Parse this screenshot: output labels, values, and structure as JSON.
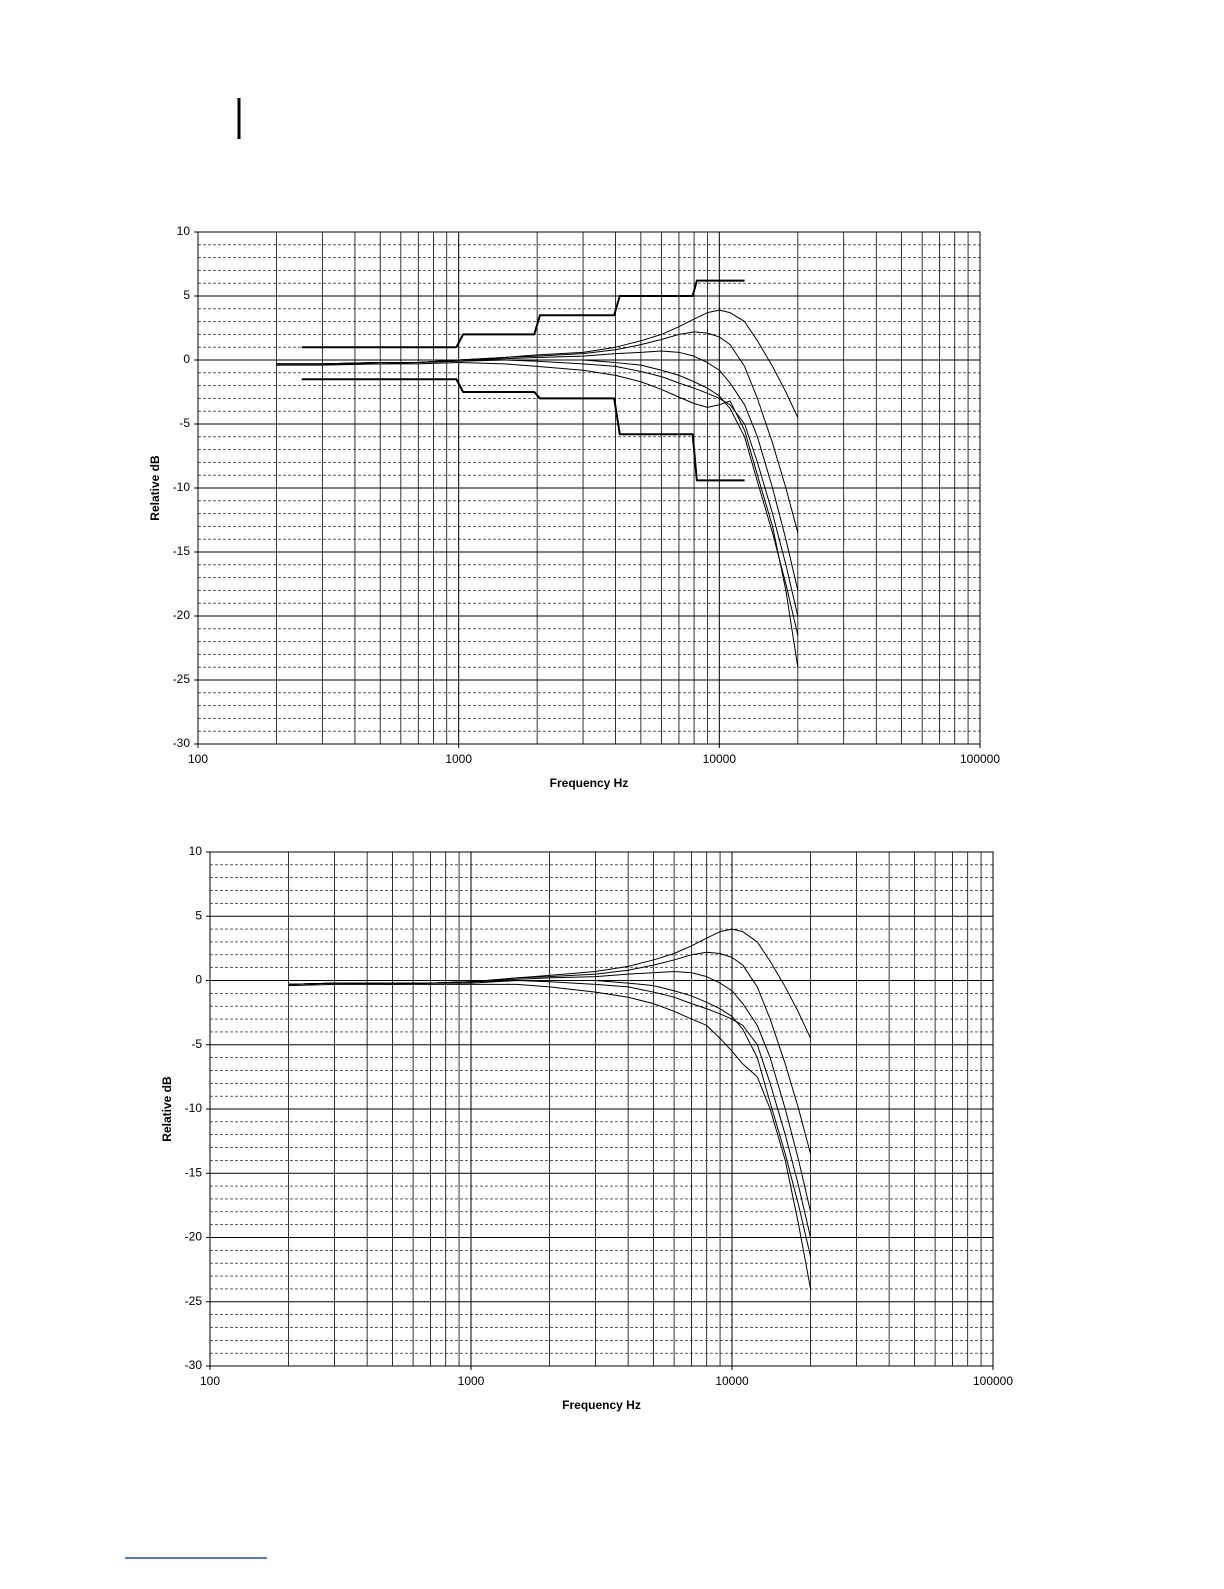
{
  "chart_data": [
    {
      "type": "line",
      "xlabel": "Frequency Hz",
      "ylabel": "Relative dB",
      "log_x": true,
      "grid": true,
      "xlim": [
        100,
        100000
      ],
      "xticks": [
        100,
        1000,
        10000,
        100000
      ],
      "ylim": [
        -30,
        10
      ],
      "yticks": [
        -30,
        -25,
        -20,
        -15,
        -10,
        -5,
        0,
        5,
        10
      ],
      "x": [
        200,
        300,
        500,
        700,
        1000,
        1500,
        2000,
        3000,
        4000,
        5000,
        6000,
        7000,
        8000,
        9000,
        10000,
        11000,
        12500,
        14000,
        16000,
        18000,
        20000
      ],
      "series": [
        {
          "color": "#000000",
          "width": 1,
          "values": [
            -0.3,
            -0.3,
            -0.2,
            -0.2,
            0,
            0.2,
            0.4,
            0.6,
            1,
            1.5,
            2,
            2.6,
            3.2,
            3.7,
            3.9,
            3.7,
            3,
            1.5,
            -0.5,
            -2.5,
            -4.5
          ]
        },
        {
          "color": "#000000",
          "width": 1,
          "values": [
            -0.3,
            -0.3,
            -0.2,
            -0.2,
            0,
            0.2,
            0.3,
            0.5,
            0.8,
            1.2,
            1.6,
            2,
            2.2,
            2.1,
            1.8,
            1.2,
            -0.5,
            -3,
            -6.5,
            -10,
            -13.5
          ]
        },
        {
          "color": "#000000",
          "width": 1,
          "values": [
            -0.3,
            -0.3,
            -0.2,
            -0.2,
            0,
            0.1,
            0.2,
            0.3,
            0.5,
            0.6,
            0.7,
            0.6,
            0.3,
            -0.2,
            -0.8,
            -1.8,
            -3.5,
            -6,
            -10,
            -14,
            -18
          ]
        },
        {
          "color": "#000000",
          "width": 1,
          "values": [
            -0.3,
            -0.3,
            -0.2,
            -0.2,
            0,
            0,
            -0.1,
            -0.3,
            -0.5,
            -0.9,
            -1.3,
            -1.8,
            -2.2,
            -2.6,
            -3,
            -3.5,
            -5,
            -8,
            -12,
            -16,
            -20
          ]
        },
        {
          "color": "#000000",
          "width": 1,
          "values": [
            -0.4,
            -0.4,
            -0.3,
            -0.3,
            -0.2,
            -0.3,
            -0.5,
            -0.8,
            -1.2,
            -1.7,
            -2.3,
            -2.9,
            -3.4,
            -3.7,
            -3.5,
            -3.2,
            -5.5,
            -9,
            -13,
            -18,
            -24
          ]
        },
        {
          "color": "#000000",
          "width": 1,
          "values": [
            -0.3,
            -0.3,
            -0.3,
            -0.2,
            -0.1,
            0,
            0,
            0,
            -0.2,
            -0.4,
            -0.8,
            -1.2,
            -1.7,
            -2.2,
            -2.8,
            -3.8,
            -6,
            -9.5,
            -13.5,
            -17.5,
            -21.5
          ]
        },
        {
          "color": "#000000",
          "width": 2,
          "x": [
            250,
            980,
            1040,
            1950,
            2050,
            3950,
            4150,
            7900,
            8200,
            12500
          ],
          "values": [
            1,
            1,
            2,
            2,
            3.5,
            3.5,
            5,
            5,
            6.2,
            6.2
          ]
        },
        {
          "color": "#000000",
          "width": 2,
          "x": [
            250,
            980,
            1040,
            1950,
            2050,
            3950,
            4150,
            7900,
            8200,
            12500
          ],
          "values": [
            -1.5,
            -1.5,
            -2.5,
            -2.5,
            -3,
            -3,
            -5.8,
            -5.8,
            -9.4,
            -9.4
          ]
        }
      ]
    },
    {
      "type": "line",
      "xlabel": "Frequency Hz",
      "ylabel": "Relative dB",
      "log_x": true,
      "grid": true,
      "xlim": [
        100,
        100000
      ],
      "xticks": [
        100,
        1000,
        10000,
        100000
      ],
      "ylim": [
        -30,
        10
      ],
      "yticks": [
        -30,
        -25,
        -20,
        -15,
        -10,
        -5,
        0,
        5,
        10
      ],
      "x": [
        200,
        300,
        500,
        700,
        1000,
        1500,
        2000,
        3000,
        4000,
        5000,
        6000,
        7000,
        8000,
        9000,
        10000,
        11000,
        12500,
        14000,
        16000,
        18000,
        20000
      ],
      "series": [
        {
          "color": "#000000",
          "width": 1,
          "values": [
            -0.3,
            -0.2,
            -0.2,
            -0.2,
            -0.1,
            0.2,
            0.4,
            0.7,
            1.1,
            1.6,
            2.1,
            2.7,
            3.3,
            3.8,
            4,
            3.8,
            3,
            1.5,
            -0.5,
            -2.5,
            -4.5
          ]
        },
        {
          "color": "#000000",
          "width": 1,
          "values": [
            -0.3,
            -0.2,
            -0.2,
            -0.2,
            -0.1,
            0.2,
            0.3,
            0.5,
            0.8,
            1.2,
            1.6,
            2,
            2.2,
            2.1,
            1.8,
            1.2,
            -0.5,
            -3,
            -6.5,
            -10,
            -13.5
          ]
        },
        {
          "color": "#000000",
          "width": 1,
          "values": [
            -0.3,
            -0.2,
            -0.2,
            -0.2,
            -0.1,
            0.1,
            0.2,
            0.3,
            0.5,
            0.6,
            0.7,
            0.6,
            0.3,
            -0.2,
            -0.8,
            -1.8,
            -3.5,
            -6,
            -10,
            -14,
            -18
          ]
        },
        {
          "color": "#000000",
          "width": 1,
          "values": [
            -0.3,
            -0.2,
            -0.2,
            -0.2,
            -0.1,
            0,
            -0.1,
            -0.3,
            -0.5,
            -0.9,
            -1.3,
            -1.8,
            -2.2,
            -2.6,
            -3,
            -3.5,
            -5,
            -8,
            -12,
            -16,
            -20
          ]
        },
        {
          "color": "#000000",
          "width": 1,
          "values": [
            -0.4,
            -0.3,
            -0.3,
            -0.3,
            -0.3,
            -0.3,
            -0.5,
            -0.9,
            -1.3,
            -1.8,
            -2.4,
            -3,
            -3.5,
            -4.5,
            -5.5,
            -6.5,
            -7.5,
            -10,
            -14,
            -19,
            -24
          ]
        },
        {
          "color": "#000000",
          "width": 1,
          "values": [
            -0.3,
            -0.2,
            -0.3,
            -0.2,
            -0.2,
            0,
            0,
            0,
            -0.2,
            -0.4,
            -0.8,
            -1.2,
            -1.7,
            -2.2,
            -2.8,
            -3.8,
            -6,
            -9.5,
            -13.5,
            -17.5,
            -21.5
          ]
        }
      ]
    }
  ]
}
